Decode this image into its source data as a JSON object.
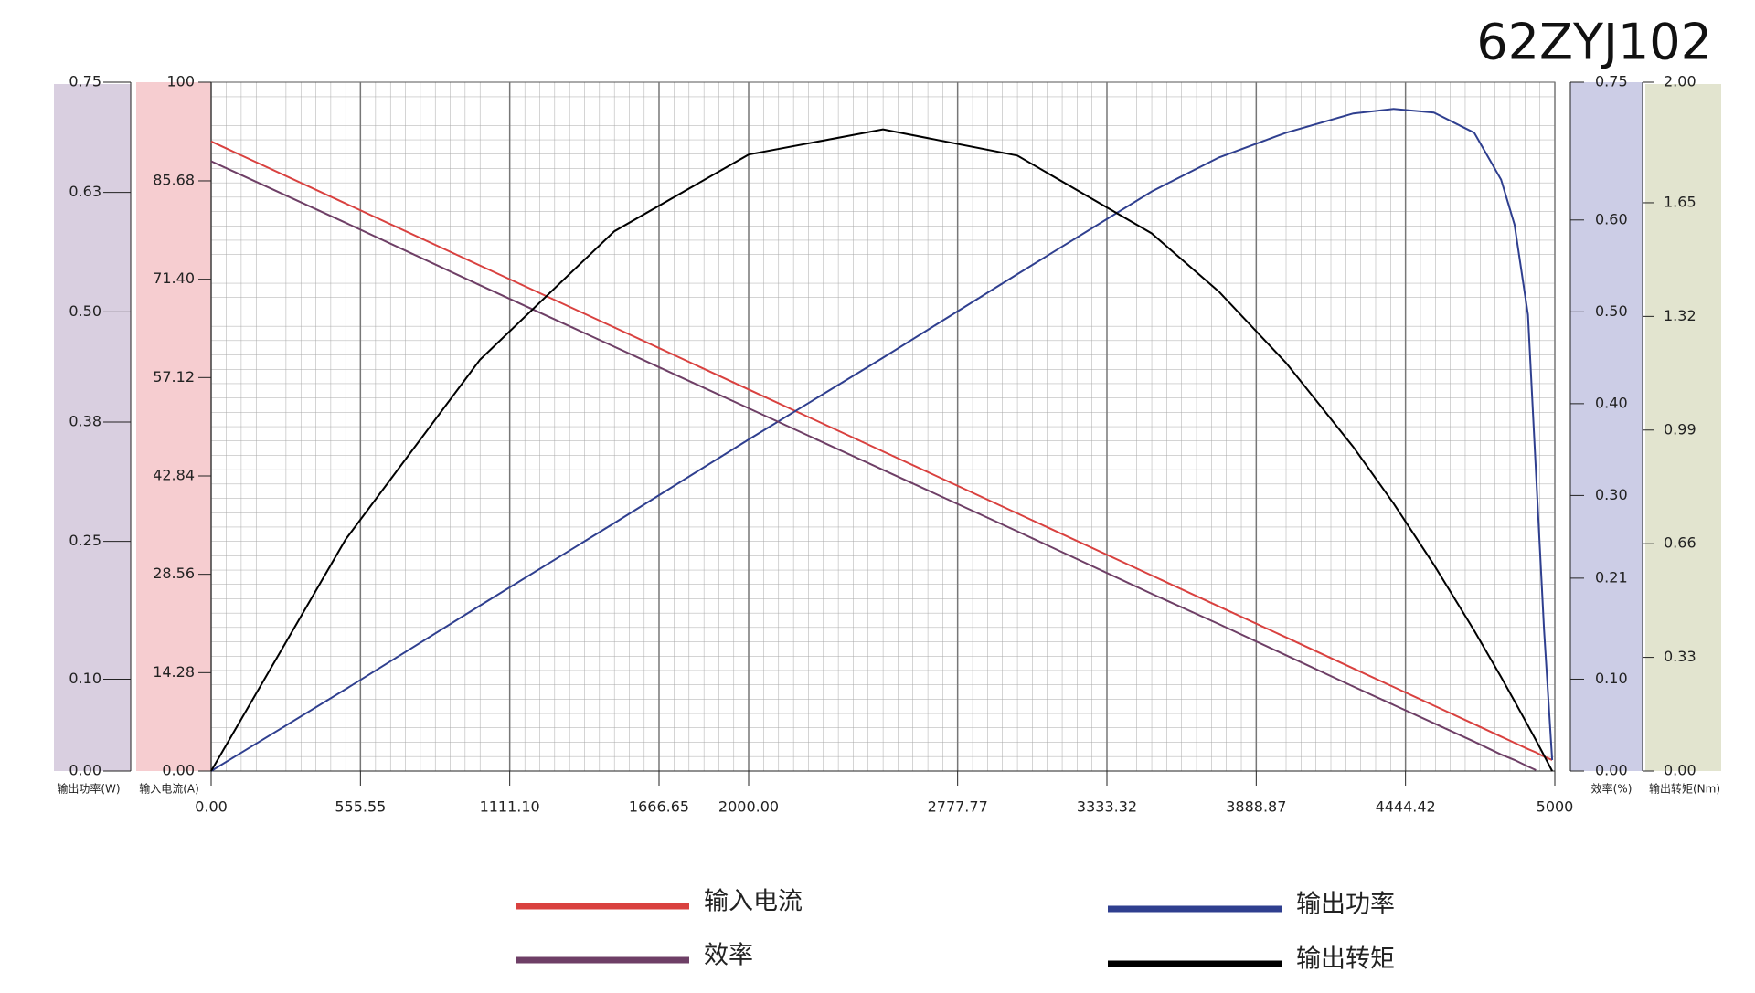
{
  "chart_data": {
    "type": "line",
    "title": "62ZYJ102",
    "x": [
      0,
      500,
      1000,
      1500,
      2000,
      2500,
      3000,
      3500,
      3750,
      4000,
      4250,
      4400,
      4550,
      4700,
      4800,
      4850,
      4900,
      4930,
      4960,
      4990
    ],
    "xlim": [
      0,
      5000
    ],
    "xticks": [
      {
        "value": 0,
        "label": "0.00"
      },
      555.55,
      {
        "value": 1111.1,
        "label": "1111.10"
      },
      1666.65,
      {
        "value": 2000,
        "label": "2000.00"
      },
      2777.77,
      3333.32,
      3888.87,
      4444.42,
      5000
    ],
    "grid": true,
    "y_axes": [
      {
        "label": "输出功率(W)",
        "side": "left",
        "lim": [
          0,
          0.75
        ],
        "ticks": [
          {
            "value": 0,
            "label": "0.00"
          },
          {
            "value": 0.1,
            "label": "0.10"
          },
          0.25,
          0.38,
          {
            "value": 0.5,
            "label": "0.50"
          },
          0.63,
          0.75
        ]
      },
      {
        "label": "输入电流(A)",
        "side": "left",
        "lim": [
          0,
          100
        ],
        "ticks": [
          {
            "value": 0,
            "label": "0.00"
          },
          14.28,
          28.56,
          42.84,
          57.12,
          {
            "value": 71.4,
            "label": "71.40"
          },
          85.68,
          100
        ]
      },
      {
        "label": "效率(%)",
        "side": "right",
        "lim": [
          0,
          0.75
        ],
        "ticks": [
          {
            "value": 0,
            "label": "0.00"
          },
          {
            "value": 0.1,
            "label": "0.10"
          },
          0.21,
          {
            "value": 0.3,
            "label": "0.30"
          },
          {
            "value": 0.4,
            "label": "0.40"
          },
          {
            "value": 0.5,
            "label": "0.50"
          },
          {
            "value": 0.6,
            "label": "0.60"
          },
          0.75
        ]
      },
      {
        "label": "输出转矩(Nm)",
        "side": "right",
        "lim": [
          0,
          2
        ],
        "ticks": [
          {
            "value": 0,
            "label": "0.00"
          },
          0.33,
          0.66,
          0.99,
          1.32,
          1.65,
          {
            "value": 2,
            "label": "2.00"
          }
        ]
      }
    ],
    "series": [
      {
        "name": "输入电流",
        "color": "#d9413f",
        "axis": 1,
        "values": [
          91.4,
          82.4,
          73.4,
          64.4,
          55.4,
          46.4,
          37.4,
          28.4,
          23.9,
          19.4,
          14.9,
          12.2,
          9.5,
          6.8,
          5.0,
          4.1,
          3.2,
          2.7,
          2.1,
          1.6
        ]
      },
      {
        "name": "输出功率",
        "color": "#2f3f8f",
        "axis": 0,
        "values": [
          0,
          0.089,
          0.18,
          0.27,
          0.361,
          0.45,
          0.541,
          0.631,
          0.668,
          0.695,
          0.716,
          0.721,
          0.717,
          0.695,
          0.644,
          0.595,
          0.497,
          0.325,
          0.154,
          0.012
        ]
      },
      {
        "name": "效率",
        "color": "#6e3f66",
        "axis": 2,
        "values": [
          0.664,
          0.597,
          0.529,
          0.462,
          0.395,
          0.328,
          0.261,
          0.193,
          0.16,
          0.126,
          0.092,
          0.072,
          0.052,
          0.032,
          0.018,
          0.012,
          0.005,
          0.001,
          null,
          null
        ]
      },
      {
        "name": "输出转矩",
        "color": "#000000",
        "axis": 3,
        "values": [
          0,
          0.672,
          1.194,
          1.567,
          1.79,
          1.863,
          1.787,
          1.561,
          1.392,
          1.185,
          0.941,
          0.777,
          0.599,
          0.408,
          0.273,
          0.203,
          0.132,
          0.089,
          0.045,
          0
        ]
      }
    ]
  }
}
